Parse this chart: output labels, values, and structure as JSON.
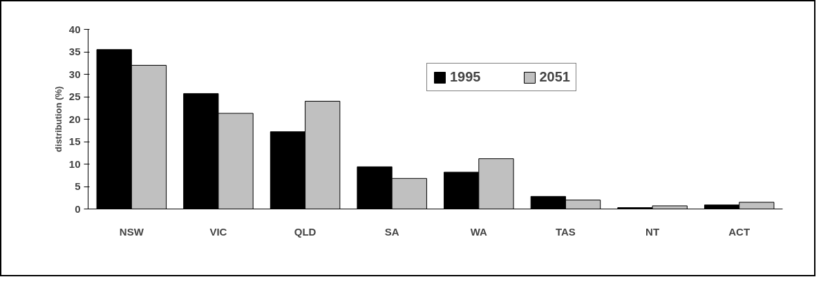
{
  "chart_data": {
    "type": "bar",
    "ylabel": "distribution (%)",
    "categories": [
      "NSW",
      "VIC",
      "QLD",
      "SA",
      "WA",
      "TAS",
      "NT",
      "ACT"
    ],
    "series": [
      {
        "name": "1995",
        "color": "#000000",
        "values": [
          35.5,
          25.7,
          17.2,
          9.4,
          8.2,
          2.8,
          0.3,
          0.9
        ]
      },
      {
        "name": "2051",
        "color": "#c0c0c0",
        "values": [
          32.0,
          21.3,
          24.0,
          6.8,
          11.2,
          2.0,
          0.7,
          1.5
        ]
      }
    ],
    "ylim": [
      0,
      40
    ],
    "yticks": [
      0,
      5,
      10,
      15,
      20,
      25,
      30,
      35,
      40
    ],
    "grid": false,
    "legend": "top right"
  }
}
